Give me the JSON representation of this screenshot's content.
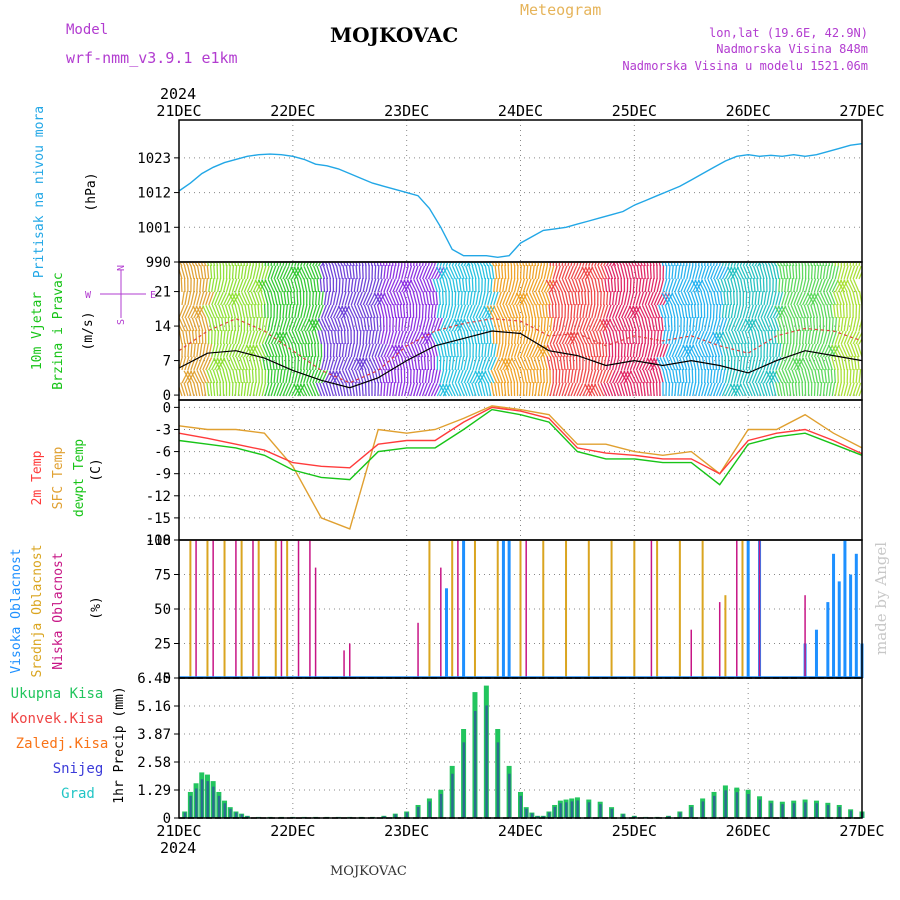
{
  "header": {
    "model_label": "Model",
    "model_name": "wrf-nmm_v3.9.1 e1km",
    "station_title": "MOJKOVAC",
    "meteogram_label": "Meteogram",
    "coords": "lon,lat (19.6E, 42.9N)",
    "elev_actual": "Nadmorska Visina 848m",
    "elev_model": "Nadmorska Visina u modelu 1521.06m",
    "year": "2024",
    "footer_station": "MOJKOVAC",
    "credit": "made by Angel"
  },
  "colors": {
    "pressure": "#22a7e6",
    "wind_label": "#18c418",
    "t2m": "#ff3b3b",
    "tsfc": "#e0a030",
    "dewpt": "#18c418",
    "cloud_high": "#1e90ff",
    "cloud_mid": "#daa520",
    "cloud_low": "#c71585",
    "precip_total": "#22c55e",
    "precip_conv": "#ef4444",
    "precip_frz": "#f97316",
    "precip_snow": "#3b3bd9",
    "precip_grad": "#22c5c5",
    "model_text": "#b23cd0",
    "meteogram_text": "#e6b45a"
  },
  "chart_data": [
    {
      "type": "line",
      "panel": "pressure",
      "ylabel_left": "Pritisak na nivou mora",
      "ylabel_unit": "(hPa)",
      "x_ticks": [
        "21DEC",
        "22DEC",
        "23DEC",
        "24DEC",
        "25DEC",
        "26DEC",
        "27DEC"
      ],
      "y_ticks": [
        990,
        1001,
        1012,
        1023
      ],
      "ylim": [
        990,
        1035
      ],
      "x": [
        0,
        0.1,
        0.2,
        0.3,
        0.4,
        0.5,
        0.6,
        0.7,
        0.8,
        0.9,
        1.0,
        1.1,
        1.2,
        1.3,
        1.4,
        1.5,
        1.6,
        1.7,
        1.8,
        1.9,
        2.0,
        2.1,
        2.2,
        2.3,
        2.4,
        2.5,
        2.6,
        2.7,
        2.8,
        2.9,
        3.0,
        3.1,
        3.2,
        3.3,
        3.4,
        3.5,
        3.6,
        3.7,
        3.8,
        3.9,
        4.0,
        4.1,
        4.2,
        4.3,
        4.4,
        4.5,
        4.6,
        4.7,
        4.8,
        4.9,
        5.0,
        5.1,
        5.2,
        5.3,
        5.4,
        5.5,
        5.6,
        5.7,
        5.8,
        5.9,
        6.0
      ],
      "series": [
        {
          "values": [
            1012.5,
            1015,
            1018,
            1020,
            1021.5,
            1022.5,
            1023.5,
            1024,
            1024.2,
            1024,
            1023.5,
            1022.5,
            1021,
            1020.5,
            1019.5,
            1018,
            1016.5,
            1015,
            1014,
            1013,
            1012,
            1011,
            1007,
            1001,
            994,
            992,
            992,
            992,
            991.5,
            992,
            996,
            998,
            1000,
            1000.5,
            1001,
            1002,
            1003,
            1004,
            1005,
            1006,
            1008,
            1009.5,
            1011,
            1012.5,
            1014,
            1016,
            1018,
            1020,
            1022,
            1023.5,
            1024,
            1023.5,
            1023.8,
            1023.5,
            1024,
            1023.5,
            1024,
            1025,
            1026,
            1027,
            1027.5
          ]
        }
      ]
    },
    {
      "type": "line",
      "panel": "wind",
      "ylabel_left": [
        "10m Vjetar",
        "Brzina i Pravac"
      ],
      "ylabel_unit": "(m/s)",
      "compass": [
        "N",
        "E",
        "S",
        "W"
      ],
      "y_ticks": [
        0,
        7,
        14,
        21
      ],
      "ylim": [
        -1,
        27
      ],
      "x": [
        0,
        0.25,
        0.5,
        0.75,
        1.0,
        1.25,
        1.5,
        1.75,
        2.0,
        2.25,
        2.5,
        2.75,
        3.0,
        3.25,
        3.5,
        3.75,
        4.0,
        4.25,
        4.5,
        4.75,
        5.0,
        5.25,
        5.5,
        5.75,
        6.0
      ],
      "series": [
        {
          "name": "speed",
          "values": [
            5.5,
            8.5,
            9,
            7.5,
            5,
            3,
            1.5,
            3.5,
            7,
            10,
            11.5,
            13,
            12.5,
            9,
            8,
            6,
            7,
            6,
            7,
            6,
            4.5,
            7,
            9,
            8,
            7
          ]
        },
        {
          "name": "gust",
          "values": [
            9,
            13,
            15.5,
            13,
            9,
            5,
            2.5,
            5,
            10,
            13,
            14.5,
            15.5,
            15,
            12,
            12.5,
            10,
            12,
            11,
            12,
            10,
            8.5,
            12,
            13.5,
            13,
            11
          ]
        }
      ],
      "direction_colors": [
        "#e0a030",
        "#8de030",
        "#2fc82f",
        "#6a3dd8",
        "#8a2be2",
        "#20c0e0",
        "#f0a020",
        "#ef4444",
        "#e02060",
        "#20b0f0",
        "#20c0c0",
        "#58d858",
        "#a8e030"
      ]
    },
    {
      "type": "line",
      "panel": "temperature",
      "ylabel_left": [
        "2m Temp",
        "SFC Temp",
        "dewpt Temp"
      ],
      "ylabel_unit": "(C)",
      "y_ticks": [
        0,
        -3,
        -6,
        -9,
        -12,
        -15,
        -18
      ],
      "ylim": [
        -18,
        1
      ],
      "x": [
        0,
        0.25,
        0.5,
        0.75,
        1.0,
        1.25,
        1.5,
        1.75,
        2.0,
        2.25,
        2.5,
        2.75,
        3.0,
        3.25,
        3.5,
        3.75,
        4.0,
        4.25,
        4.5,
        4.75,
        5.0,
        5.25,
        5.5,
        5.75,
        6.0
      ],
      "series": [
        {
          "name": "2m Temp",
          "values": [
            -3.5,
            -4.2,
            -5,
            -5.8,
            -7.5,
            -8,
            -8.2,
            -5,
            -4.5,
            -4.5,
            -2,
            0,
            -0.5,
            -1.5,
            -5.5,
            -6.2,
            -6.5,
            -7,
            -7,
            -9,
            -4.5,
            -3.5,
            -3,
            -4.5,
            -6.3
          ]
        },
        {
          "name": "SFC Temp",
          "values": [
            -2.5,
            -3,
            -3,
            -3.5,
            -8,
            -15,
            -16.5,
            -3,
            -3.5,
            -3,
            -1.5,
            0.2,
            -0.3,
            -1,
            -5,
            -5,
            -6,
            -6.5,
            -6,
            -9,
            -3,
            -3,
            -1,
            -3.5,
            -5.5
          ]
        },
        {
          "name": "dewpt Temp",
          "values": [
            -4.5,
            -5,
            -5.5,
            -6.5,
            -8.5,
            -9.5,
            -9.8,
            -6,
            -5.5,
            -5.5,
            -3,
            -0.3,
            -1,
            -2,
            -6,
            -7,
            -7,
            -7.5,
            -7.5,
            -10.5,
            -5,
            -4,
            -3.5,
            -5,
            -6.5
          ]
        }
      ]
    },
    {
      "type": "bar",
      "panel": "clouds",
      "ylabel_left": [
        "Visoka Oblacnost",
        "Srednja Oblacnost",
        "Niska Oblacnost"
      ],
      "ylabel_unit": "(%)",
      "y_ticks": [
        0,
        25,
        50,
        75,
        100
      ],
      "ylim": [
        0,
        100
      ],
      "series": [
        {
          "name": "Visoka Oblacnost",
          "x": [
            1.6,
            1.8,
            2.35,
            2.5,
            2.85,
            2.9,
            5.0,
            5.1,
            5.5,
            5.6,
            5.7,
            5.75,
            5.8,
            5.85,
            5.9,
            5.95,
            6.0
          ],
          "values": [
            1,
            1,
            65,
            100,
            100,
            100,
            100,
            100,
            25,
            35,
            55,
            90,
            70,
            100,
            75,
            90,
            25
          ]
        },
        {
          "name": "Srednja Oblacnost",
          "x": [
            0.1,
            0.25,
            0.4,
            0.55,
            0.7,
            0.85,
            0.95,
            2.2,
            2.4,
            2.6,
            2.8,
            3.0,
            3.2,
            3.4,
            3.6,
            3.8,
            4.0,
            4.2,
            4.4,
            4.6,
            4.8,
            4.95
          ],
          "values": [
            100,
            100,
            100,
            100,
            100,
            100,
            100,
            100,
            100,
            100,
            100,
            100,
            100,
            100,
            100,
            100,
            100,
            100,
            100,
            100,
            60,
            100
          ]
        },
        {
          "name": "Niska Oblacnost",
          "x": [
            0.15,
            0.3,
            0.5,
            0.65,
            0.9,
            1.05,
            1.15,
            1.2,
            1.45,
            1.5,
            2.1,
            2.3,
            2.45,
            3.05,
            4.15,
            4.5,
            4.75,
            4.9,
            5.1,
            5.5
          ],
          "values": [
            100,
            100,
            100,
            100,
            100,
            100,
            100,
            80,
            20,
            25,
            40,
            80,
            100,
            100,
            100,
            35,
            55,
            100,
            100,
            60
          ]
        }
      ]
    },
    {
      "type": "bar",
      "panel": "precip",
      "ylabel_left": [
        "Ukupna Kisa",
        "Konvek.Kisa",
        "Zaledj.Kisa",
        "Snijeg",
        "Grad"
      ],
      "ylabel_unit": "1hr Precip (mm)",
      "y_ticks": [
        0,
        1.29,
        2.58,
        3.87,
        5.16,
        6.45
      ],
      "ylim": [
        0,
        6.45
      ],
      "x": [
        0.05,
        0.1,
        0.15,
        0.2,
        0.25,
        0.3,
        0.35,
        0.4,
        0.45,
        0.5,
        0.55,
        0.6,
        0.7,
        0.8,
        0.9,
        1.0,
        1.1,
        1.2,
        1.3,
        1.4,
        1.5,
        1.6,
        1.7,
        1.8,
        1.9,
        2.0,
        2.1,
        2.2,
        2.3,
        2.4,
        2.5,
        2.6,
        2.7,
        2.8,
        2.9,
        3.0,
        3.05,
        3.1,
        3.15,
        3.2,
        3.25,
        3.3,
        3.35,
        3.4,
        3.45,
        3.5,
        3.6,
        3.7,
        3.8,
        3.9,
        4.0,
        4.1,
        4.2,
        4.3,
        4.4,
        4.5,
        4.6,
        4.7,
        4.8,
        4.9,
        5.0,
        5.1,
        5.2,
        5.3,
        5.4,
        5.5,
        5.6,
        5.7,
        5.8,
        5.9,
        6.0
      ],
      "values": [
        0.3,
        1.2,
        1.6,
        2.1,
        2.0,
        1.7,
        1.2,
        0.8,
        0.5,
        0.3,
        0.2,
        0.1,
        0.05,
        0.05,
        0.05,
        0.05,
        0.05,
        0.05,
        0.05,
        0.05,
        0.05,
        0.05,
        0.05,
        0.1,
        0.2,
        0.3,
        0.6,
        0.9,
        1.3,
        2.4,
        4.1,
        5.8,
        6.1,
        4.1,
        2.4,
        1.2,
        0.5,
        0.25,
        0.1,
        0.1,
        0.3,
        0.6,
        0.8,
        0.85,
        0.9,
        0.95,
        0.85,
        0.75,
        0.5,
        0.2,
        0.1,
        0.05,
        0.05,
        0.1,
        0.3,
        0.6,
        0.9,
        1.2,
        1.5,
        1.4,
        1.3,
        1.0,
        0.8,
        0.75,
        0.8,
        0.85,
        0.8,
        0.7,
        0.6,
        0.4,
        0.3
      ]
    }
  ]
}
